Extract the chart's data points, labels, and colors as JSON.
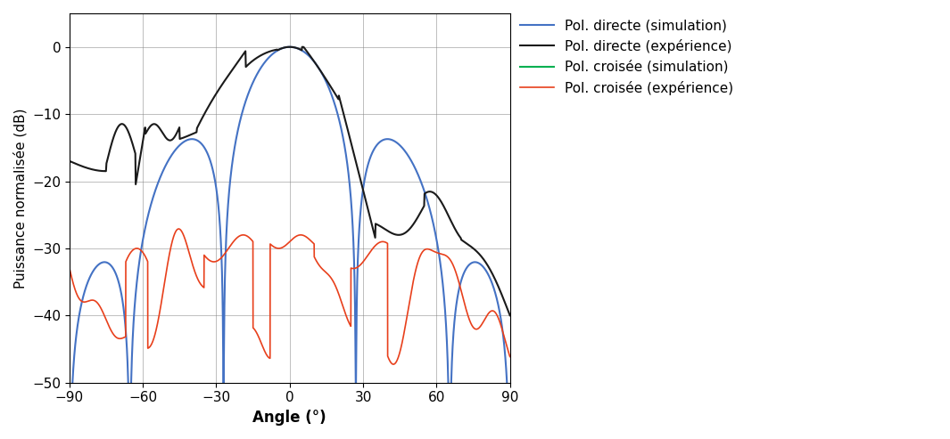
{
  "title": "",
  "xlabel": "Angle (°)",
  "ylabel": "Puissance normalisée (dB)",
  "xlim": [
    -90,
    90
  ],
  "ylim": [
    -50,
    5
  ],
  "xticks": [
    -90,
    -60,
    -30,
    0,
    30,
    60,
    90
  ],
  "yticks": [
    -50,
    -40,
    -30,
    -20,
    -10,
    0
  ],
  "legend": [
    {
      "label": "Pol. directe (simulation)",
      "color": "#4472C4",
      "lw": 1.5
    },
    {
      "label": "Pol. directe (expérience)",
      "color": "#1a1a1a",
      "lw": 1.5
    },
    {
      "label": "Pol. croisée (simulation)",
      "color": "#00B050",
      "lw": 1.5
    },
    {
      "label": "Pol. croisée (expérience)",
      "color": "#E8401C",
      "lw": 1.2
    }
  ],
  "background_color": "#ffffff",
  "xlabel_fontsize": 12,
  "ylabel_fontsize": 11,
  "tick_fontsize": 11,
  "legend_fontsize": 11
}
